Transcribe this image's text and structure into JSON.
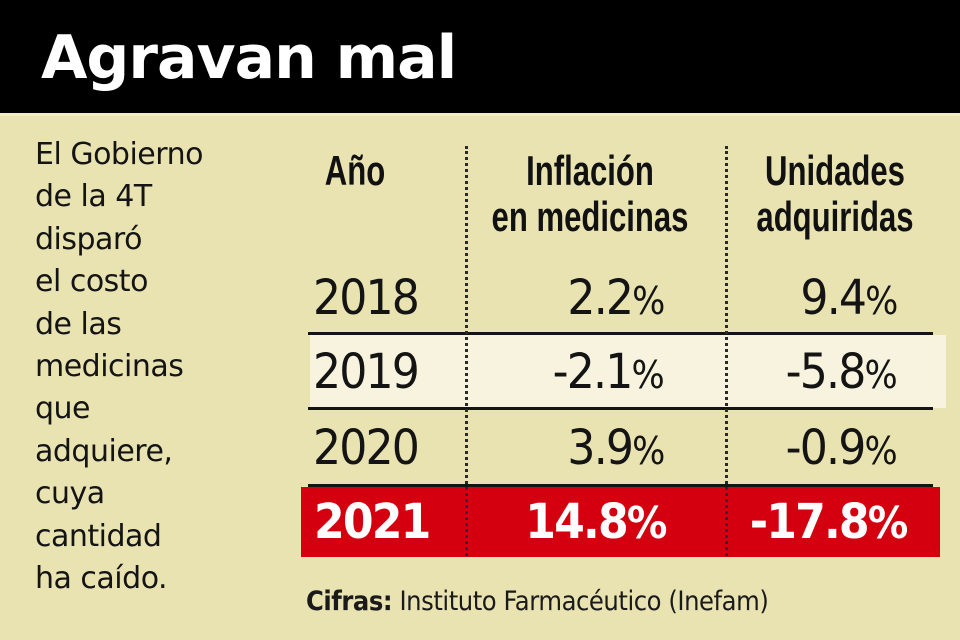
{
  "header": {
    "title": "Agravan mal"
  },
  "intro": {
    "lines": [
      "El Gobierno",
      "de la 4T",
      "disparó",
      "el costo",
      "de las",
      "medicinas",
      "que",
      "adquiere,",
      "cuya",
      "cantidad",
      "ha caído."
    ]
  },
  "table": {
    "headers": {
      "year": "Año",
      "inflation": [
        "Inflación",
        "en medicinas"
      ],
      "units": [
        "Unidades",
        "adquiridas"
      ]
    },
    "rows": [
      {
        "year": "2018",
        "inflation": "2.2",
        "units": "9.4",
        "style": "normal"
      },
      {
        "year": "2019",
        "inflation": "-2.1",
        "units": "-5.8",
        "style": "shaded"
      },
      {
        "year": "2020",
        "inflation": "3.9",
        "units": "-0.9",
        "style": "normal"
      },
      {
        "year": "2021",
        "inflation": "14.8",
        "units": "-17.8",
        "style": "highlight"
      }
    ],
    "percent_symbol": "%"
  },
  "source": {
    "label": "Cifras:",
    "text": "Instituto Farmacéutico (Inefam)"
  },
  "colors": {
    "background": "#e9e3b2",
    "header_bg": "#000000",
    "shaded_row": "#f7f3df",
    "highlight_row": "#d4000f",
    "text": "#141414"
  }
}
